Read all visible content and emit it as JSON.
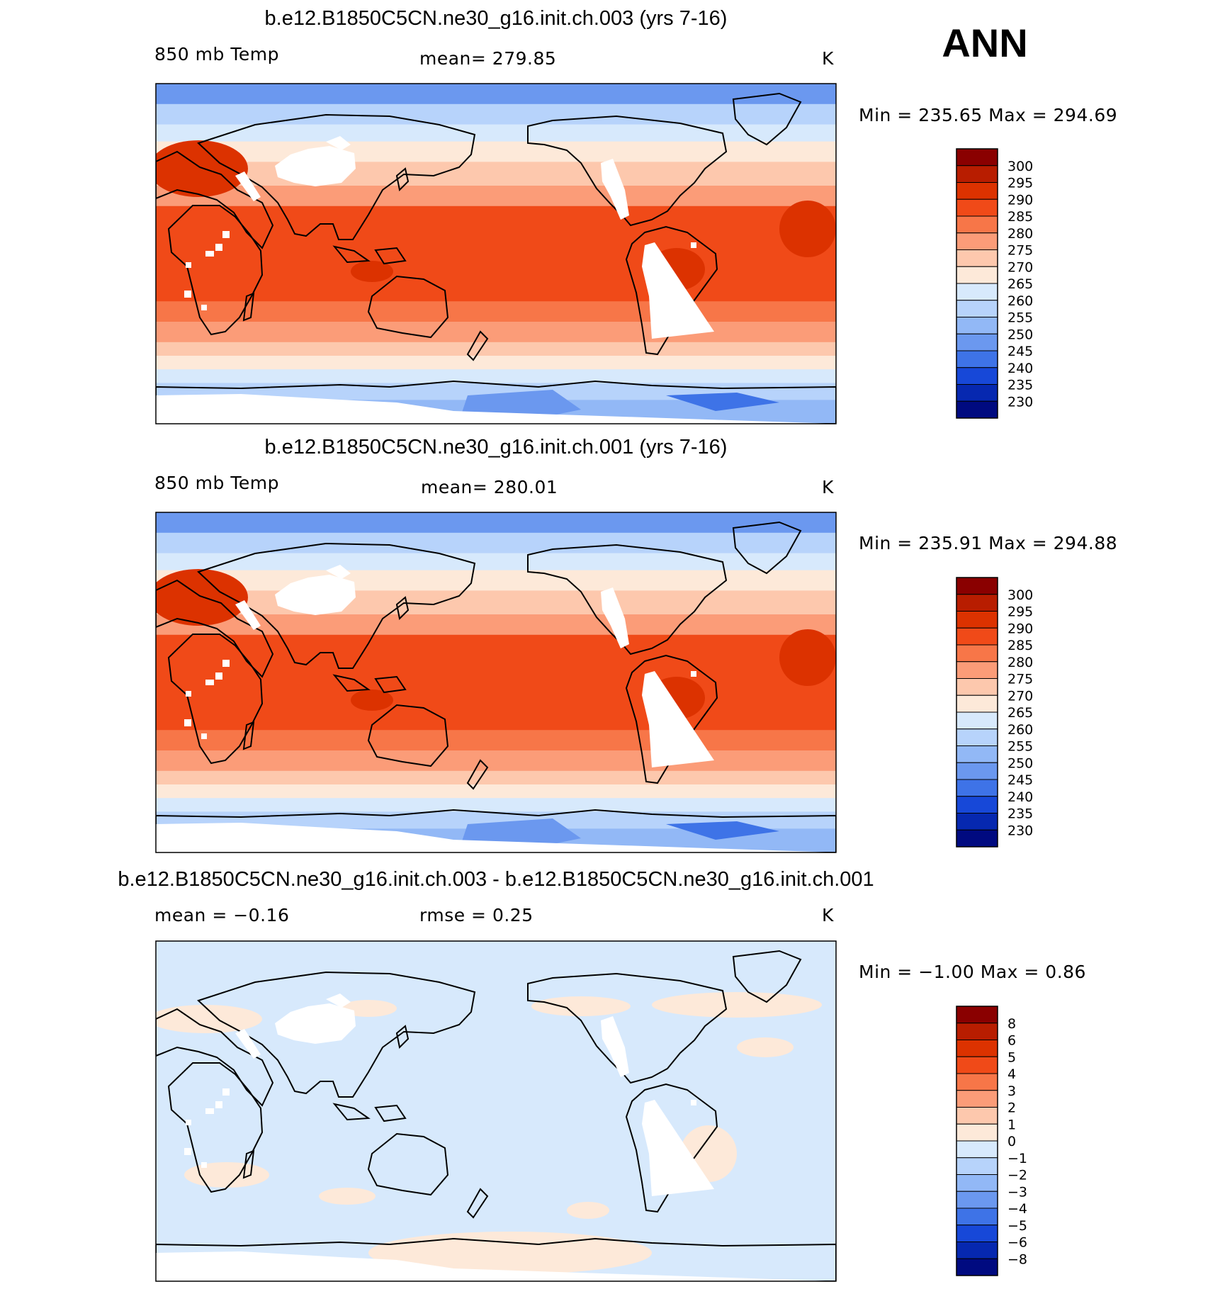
{
  "season": "ANN",
  "panels": [
    {
      "title": "b.e12.B1850C5CN.ne30_g16.init.ch.003 (yrs 7-16)",
      "variable": "850 mb Temp",
      "stat": "mean=  279.85",
      "units": "K",
      "minmax": "Min  =  235.65  Max  =  294.69",
      "colorbar_labels": [
        "300",
        "295",
        "290",
        "285",
        "280",
        "275",
        "270",
        "265",
        "260",
        "255",
        "250",
        "245",
        "240",
        "235",
        "230"
      ],
      "colorbar_colors": [
        "#8a0000",
        "#b81d00",
        "#dc3200",
        "#f04a18",
        "#f77648",
        "#fb9c78",
        "#fdc8ad",
        "#fde9d9",
        "#d7e9fc",
        "#b7d3fb",
        "#92b8f6",
        "#6b98ef",
        "#3e73e7",
        "#1748d8",
        "#0628b0",
        "#000a80"
      ]
    },
    {
      "title": "b.e12.B1850C5CN.ne30_g16.init.ch.001 (yrs 7-16)",
      "variable": "850 mb Temp",
      "stat": "mean=  280.01",
      "units": "K",
      "minmax": "Min  =  235.91  Max  =  294.88",
      "colorbar_labels": [
        "300",
        "295",
        "290",
        "285",
        "280",
        "275",
        "270",
        "265",
        "260",
        "255",
        "250",
        "245",
        "240",
        "235",
        "230"
      ],
      "colorbar_colors": [
        "#8a0000",
        "#b81d00",
        "#dc3200",
        "#f04a18",
        "#f77648",
        "#fb9c78",
        "#fdc8ad",
        "#fde9d9",
        "#d7e9fc",
        "#b7d3fb",
        "#92b8f6",
        "#6b98ef",
        "#3e73e7",
        "#1748d8",
        "#0628b0",
        "#000a80"
      ]
    },
    {
      "title": "b.e12.B1850C5CN.ne30_g16.init.ch.003 - b.e12.B1850C5CN.ne30_g16.init.ch.001",
      "variable": "mean =     −0.16",
      "stat": "rmse =     0.25",
      "units": "K",
      "minmax": "Min  =    −1.00  Max  =     0.86",
      "colorbar_labels": [
        "8",
        "6",
        "5",
        "4",
        "3",
        "2",
        "1",
        "0",
        "−1",
        "−2",
        "−3",
        "−4",
        "−5",
        "−6",
        "−8"
      ],
      "colorbar_colors": [
        "#8a0000",
        "#b81d00",
        "#dc3200",
        "#f04a18",
        "#f77648",
        "#fb9c78",
        "#fdc8ad",
        "#fde9d9",
        "#d7e9fc",
        "#b7d3fb",
        "#92b8f6",
        "#6b98ef",
        "#3e73e7",
        "#1748d8",
        "#0628b0",
        "#000a80"
      ]
    }
  ]
}
